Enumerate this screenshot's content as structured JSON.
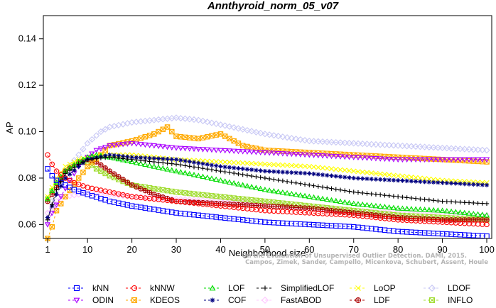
{
  "chart_data": {
    "type": "line",
    "title": "Annthyroid_norm_05_v07",
    "xlabel": "Neighborhood size",
    "ylabel": "AP",
    "xlim": [
      1,
      100
    ],
    "ylim": [
      0.054,
      0.15
    ],
    "xticks": [
      1,
      10,
      20,
      30,
      40,
      50,
      60,
      70,
      80,
      90,
      100
    ],
    "yticks": [
      0.06,
      0.08,
      0.1,
      0.12,
      0.14
    ],
    "ytick_labels": [
      "0.06",
      "0.08",
      "0.10",
      "0.12",
      "0.14"
    ],
    "credit_lines": [
      "Campos, Zimek, Sander, Campello, Micenkova, Schubert, Assent, Houle",
      "On the Evaluation of Unsupervised Outlier Detection. DAMI, 2015."
    ],
    "series": [
      {
        "name": "kNN",
        "color": "#0000ff",
        "marker": "square",
        "points": [
          [
            1,
            0.084
          ],
          [
            2,
            0.081
          ],
          [
            3,
            0.079
          ],
          [
            5,
            0.077
          ],
          [
            7,
            0.075
          ],
          [
            10,
            0.073
          ],
          [
            15,
            0.07
          ],
          [
            20,
            0.068
          ],
          [
            30,
            0.065
          ],
          [
            40,
            0.063
          ],
          [
            50,
            0.061
          ],
          [
            60,
            0.06
          ],
          [
            70,
            0.059
          ],
          [
            80,
            0.057
          ],
          [
            90,
            0.056
          ],
          [
            100,
            0.055
          ]
        ]
      },
      {
        "name": "kNNW",
        "color": "#ff0000",
        "marker": "circle",
        "points": [
          [
            1,
            0.09
          ],
          [
            2,
            0.086
          ],
          [
            3,
            0.083
          ],
          [
            5,
            0.08
          ],
          [
            7,
            0.078
          ],
          [
            10,
            0.076
          ],
          [
            15,
            0.074
          ],
          [
            20,
            0.072
          ],
          [
            30,
            0.07
          ],
          [
            40,
            0.068
          ],
          [
            50,
            0.066
          ],
          [
            60,
            0.065
          ],
          [
            70,
            0.064
          ],
          [
            80,
            0.062
          ],
          [
            90,
            0.061
          ],
          [
            100,
            0.06
          ]
        ]
      },
      {
        "name": "LOF",
        "color": "#00dd00",
        "marker": "triangle-up",
        "points": [
          [
            1,
            0.071
          ],
          [
            3,
            0.078
          ],
          [
            5,
            0.083
          ],
          [
            8,
            0.087
          ],
          [
            10,
            0.089
          ],
          [
            12,
            0.09
          ],
          [
            15,
            0.089
          ],
          [
            20,
            0.087
          ],
          [
            30,
            0.083
          ],
          [
            40,
            0.079
          ],
          [
            50,
            0.075
          ],
          [
            60,
            0.072
          ],
          [
            70,
            0.069
          ],
          [
            80,
            0.067
          ],
          [
            90,
            0.066
          ],
          [
            100,
            0.064
          ]
        ]
      },
      {
        "name": "SimplifiedLOF",
        "color": "#000000",
        "marker": "plus",
        "points": [
          [
            1,
            0.062
          ],
          [
            3,
            0.075
          ],
          [
            5,
            0.082
          ],
          [
            8,
            0.086
          ],
          [
            10,
            0.088
          ],
          [
            15,
            0.089
          ],
          [
            20,
            0.088
          ],
          [
            30,
            0.086
          ],
          [
            40,
            0.083
          ],
          [
            50,
            0.08
          ],
          [
            60,
            0.077
          ],
          [
            70,
            0.074
          ],
          [
            80,
            0.072
          ],
          [
            90,
            0.07
          ],
          [
            100,
            0.069
          ]
        ]
      },
      {
        "name": "LoOP",
        "color": "#ffff00",
        "marker": "x",
        "points": [
          [
            1,
            0.072
          ],
          [
            3,
            0.08
          ],
          [
            5,
            0.085
          ],
          [
            8,
            0.088
          ],
          [
            10,
            0.089
          ],
          [
            15,
            0.09
          ],
          [
            20,
            0.09
          ],
          [
            30,
            0.088
          ],
          [
            40,
            0.087
          ],
          [
            50,
            0.086
          ],
          [
            60,
            0.085
          ],
          [
            70,
            0.083
          ],
          [
            80,
            0.081
          ],
          [
            90,
            0.079
          ],
          [
            100,
            0.078
          ]
        ]
      },
      {
        "name": "LDOF",
        "color": "#c8c8f5",
        "marker": "diamond",
        "points": [
          [
            1,
            0.065
          ],
          [
            3,
            0.075
          ],
          [
            5,
            0.083
          ],
          [
            8,
            0.09
          ],
          [
            10,
            0.095
          ],
          [
            13,
            0.1
          ],
          [
            15,
            0.102
          ],
          [
            20,
            0.104
          ],
          [
            25,
            0.105
          ],
          [
            30,
            0.106
          ],
          [
            35,
            0.105
          ],
          [
            40,
            0.103
          ],
          [
            50,
            0.099
          ],
          [
            60,
            0.096
          ],
          [
            70,
            0.095
          ],
          [
            80,
            0.094
          ],
          [
            90,
            0.093
          ],
          [
            100,
            0.092
          ]
        ]
      },
      {
        "name": "ODIN",
        "color": "#aa00ff",
        "marker": "triangle-down",
        "points": [
          [
            1,
            0.06
          ],
          [
            2,
            0.065
          ],
          [
            4,
            0.072
          ],
          [
            6,
            0.079
          ],
          [
            8,
            0.085
          ],
          [
            10,
            0.089
          ],
          [
            12,
            0.092
          ],
          [
            15,
            0.094
          ],
          [
            20,
            0.095
          ],
          [
            30,
            0.093
          ],
          [
            40,
            0.092
          ],
          [
            50,
            0.091
          ],
          [
            60,
            0.09
          ],
          [
            70,
            0.089
          ],
          [
            80,
            0.088
          ],
          [
            90,
            0.088
          ],
          [
            100,
            0.088
          ]
        ]
      },
      {
        "name": "KDEOS",
        "color": "#ffaa00",
        "marker": "square-x",
        "points": [
          [
            1,
            0.054
          ],
          [
            2,
            0.059
          ],
          [
            3,
            0.066
          ],
          [
            5,
            0.072
          ],
          [
            8,
            0.08
          ],
          [
            10,
            0.085
          ],
          [
            13,
            0.09
          ],
          [
            15,
            0.094
          ],
          [
            20,
            0.096
          ],
          [
            25,
            0.099
          ],
          [
            28,
            0.102
          ],
          [
            30,
            0.098
          ],
          [
            35,
            0.097
          ],
          [
            40,
            0.099
          ],
          [
            45,
            0.094
          ],
          [
            50,
            0.092
          ],
          [
            60,
            0.091
          ],
          [
            70,
            0.09
          ],
          [
            80,
            0.089
          ],
          [
            90,
            0.088
          ],
          [
            100,
            0.087
          ]
        ]
      },
      {
        "name": "COF",
        "color": "#000080",
        "marker": "asterisk",
        "points": [
          [
            1,
            0.063
          ],
          [
            3,
            0.073
          ],
          [
            5,
            0.08
          ],
          [
            8,
            0.085
          ],
          [
            10,
            0.088
          ],
          [
            15,
            0.09
          ],
          [
            20,
            0.089
          ],
          [
            30,
            0.088
          ],
          [
            40,
            0.085
          ],
          [
            50,
            0.083
          ],
          [
            60,
            0.082
          ],
          [
            70,
            0.08
          ],
          [
            80,
            0.079
          ],
          [
            90,
            0.078
          ],
          [
            100,
            0.077
          ]
        ]
      },
      {
        "name": "FastABOD",
        "color": "#ffc8ff",
        "marker": "diamond",
        "points": [
          [
            1,
            0.065
          ],
          [
            3,
            0.07
          ],
          [
            5,
            0.072
          ],
          [
            8,
            0.073
          ],
          [
            10,
            0.074
          ],
          [
            15,
            0.073
          ],
          [
            20,
            0.072
          ],
          [
            30,
            0.071
          ],
          [
            40,
            0.07
          ],
          [
            50,
            0.069
          ],
          [
            60,
            0.067
          ],
          [
            70,
            0.066
          ],
          [
            80,
            0.065
          ],
          [
            90,
            0.064
          ],
          [
            100,
            0.064
          ]
        ]
      },
      {
        "name": "LDF",
        "color": "#aa0000",
        "marker": "circle-plus",
        "points": [
          [
            1,
            0.07
          ],
          [
            3,
            0.076
          ],
          [
            5,
            0.083
          ],
          [
            8,
            0.087
          ],
          [
            10,
            0.088
          ],
          [
            12,
            0.087
          ],
          [
            15,
            0.083
          ],
          [
            20,
            0.077
          ],
          [
            25,
            0.073
          ],
          [
            30,
            0.07
          ],
          [
            40,
            0.069
          ],
          [
            50,
            0.068
          ],
          [
            60,
            0.067
          ],
          [
            70,
            0.065
          ],
          [
            80,
            0.063
          ],
          [
            90,
            0.062
          ],
          [
            100,
            0.062
          ]
        ]
      },
      {
        "name": "INFLO",
        "color": "#a0dc30",
        "marker": "square-cross",
        "points": [
          [
            1,
            0.071
          ],
          [
            3,
            0.078
          ],
          [
            5,
            0.083
          ],
          [
            8,
            0.087
          ],
          [
            10,
            0.087
          ],
          [
            12,
            0.084
          ],
          [
            15,
            0.081
          ],
          [
            20,
            0.077
          ],
          [
            30,
            0.074
          ],
          [
            40,
            0.072
          ],
          [
            50,
            0.07
          ],
          [
            60,
            0.068
          ],
          [
            70,
            0.066
          ],
          [
            80,
            0.064
          ],
          [
            90,
            0.063
          ],
          [
            100,
            0.062
          ]
        ]
      }
    ],
    "legend": {
      "placement": "bottom",
      "rows": [
        [
          "kNN",
          "kNNW",
          "LOF",
          "SimplifiedLOF",
          "LoOP",
          "LDOF"
        ],
        [
          "ODIN",
          "KDEOS",
          "COF",
          "FastABOD",
          "LDF",
          "INFLO"
        ]
      ]
    }
  }
}
